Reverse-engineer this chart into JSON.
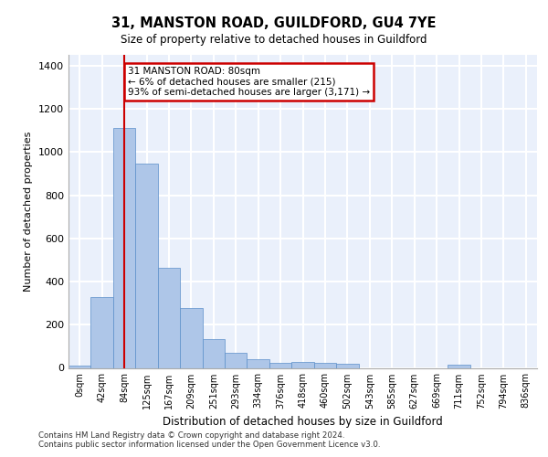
{
  "title_line1": "31, MANSTON ROAD, GUILDFORD, GU4 7YE",
  "title_line2": "Size of property relative to detached houses in Guildford",
  "xlabel": "Distribution of detached houses by size in Guildford",
  "ylabel": "Number of detached properties",
  "bar_labels": [
    "0sqm",
    "42sqm",
    "84sqm",
    "125sqm",
    "167sqm",
    "209sqm",
    "251sqm",
    "293sqm",
    "334sqm",
    "376sqm",
    "418sqm",
    "460sqm",
    "502sqm",
    "543sqm",
    "585sqm",
    "627sqm",
    "669sqm",
    "711sqm",
    "752sqm",
    "794sqm",
    "836sqm"
  ],
  "bar_values": [
    10,
    330,
    1110,
    945,
    465,
    278,
    132,
    70,
    42,
    22,
    26,
    25,
    17,
    0,
    0,
    0,
    0,
    13,
    0,
    0,
    0
  ],
  "bar_color": "#aec6e8",
  "bar_edge_color": "#5b8fc9",
  "bg_color": "#eaf0fb",
  "grid_color": "#ffffff",
  "vline_x": 2,
  "vline_color": "#cc0000",
  "annotation_text": "31 MANSTON ROAD: 80sqm\n← 6% of detached houses are smaller (215)\n93% of semi-detached houses are larger (3,171) →",
  "annotation_box_color": "#cc0000",
  "ylim": [
    0,
    1450
  ],
  "yticks": [
    0,
    200,
    400,
    600,
    800,
    1000,
    1200,
    1400
  ],
  "footer_line1": "Contains HM Land Registry data © Crown copyright and database right 2024.",
  "footer_line2": "Contains public sector information licensed under the Open Government Licence v3.0."
}
